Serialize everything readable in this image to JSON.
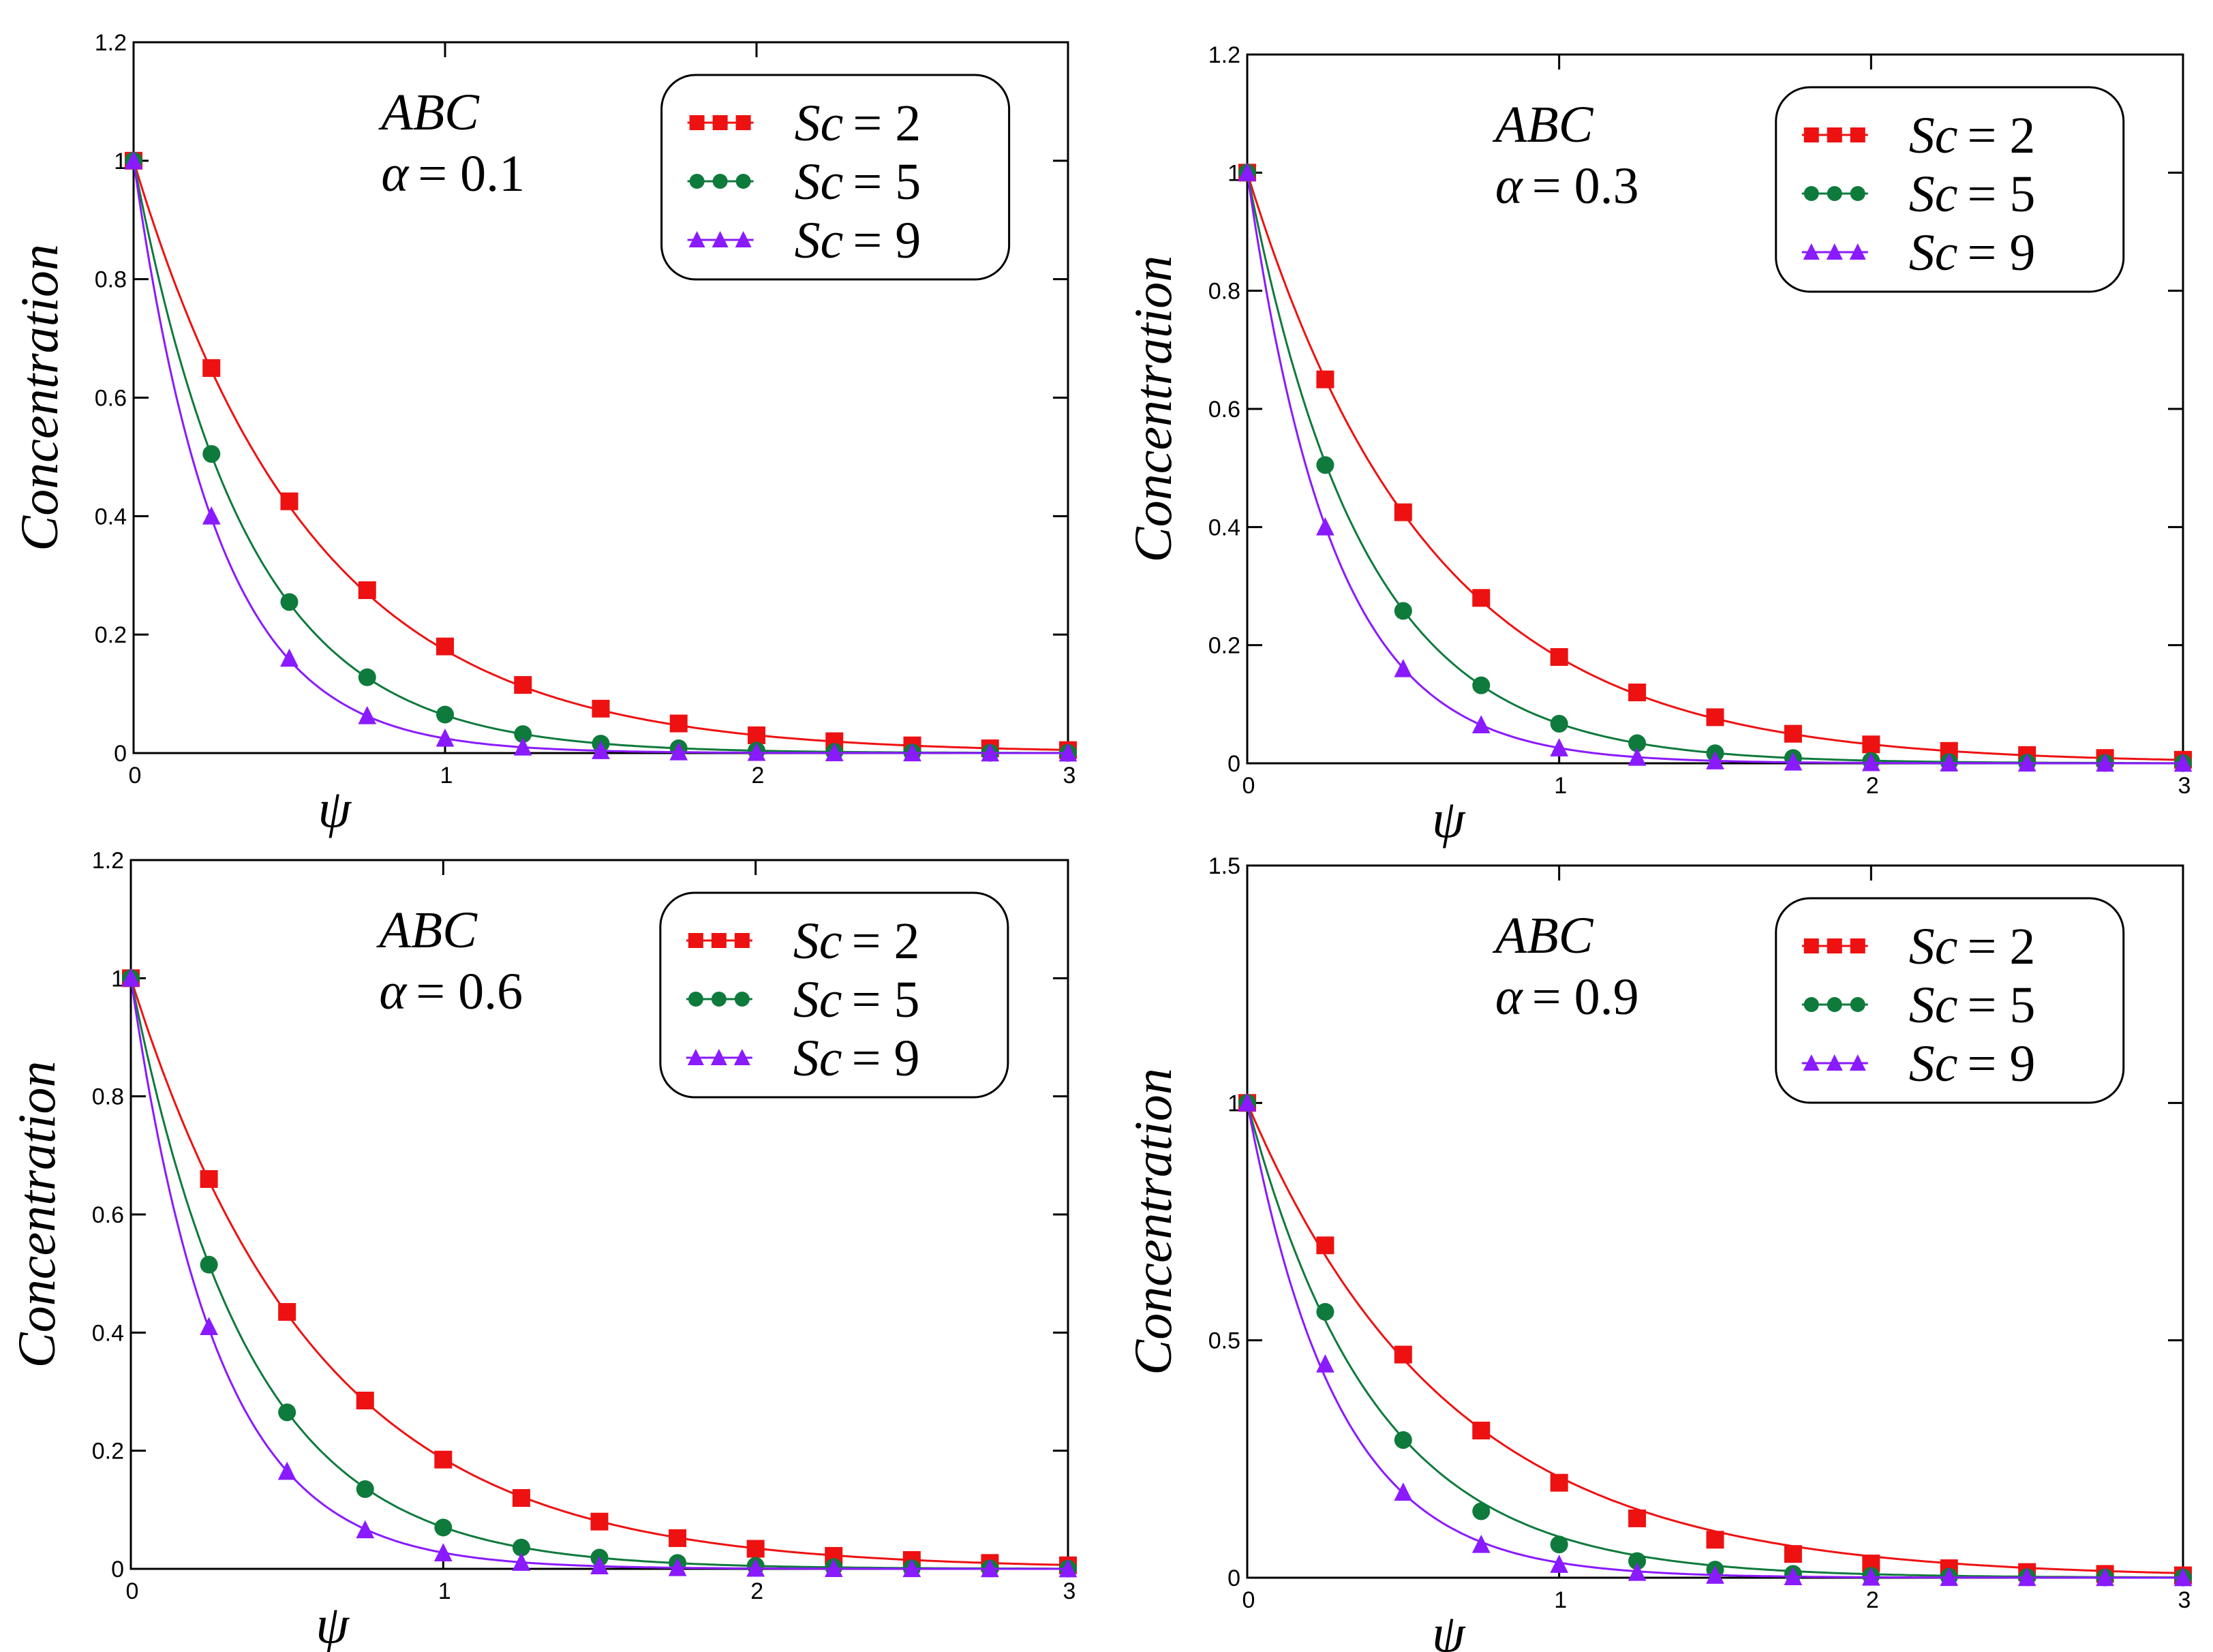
{
  "figure": {
    "description_panels": 4
  },
  "colors": {
    "sc2": "#ee1111",
    "sc5": "#0e7a3c",
    "sc9": "#8a1aff",
    "axis": "#000000"
  },
  "chart_data": [
    {
      "type": "line",
      "panel": "top-left",
      "annotation_line1": "ABC",
      "annotation_alpha_symbol": "α",
      "annotation_alpha_value": "= 0.1",
      "xlabel": "ψ",
      "ylabel": "Concentration",
      "xlim": [
        0,
        3
      ],
      "ylim": [
        0,
        1.2
      ],
      "xticks": [
        "0",
        "1",
        "2",
        "3"
      ],
      "yticks": [
        "0",
        "0.2",
        "0.4",
        "0.6",
        "0.8",
        "1",
        "1.2"
      ],
      "ytick_values": [
        0,
        0.2,
        0.4,
        0.6,
        0.8,
        1,
        1.2
      ],
      "legend_position": "top-right",
      "series": [
        {
          "name": "Sc = 2",
          "legend_sym": "Sc",
          "legend_val": "= 2",
          "marker": "square",
          "color_key": "sc2",
          "k": 1.75,
          "x": [
            0,
            0.25,
            0.5,
            0.75,
            1.0,
            1.25,
            1.5,
            1.75,
            2.0,
            2.25,
            2.5,
            2.75,
            3.0
          ],
          "values": [
            1.0,
            0.65,
            0.425,
            0.275,
            0.18,
            0.115,
            0.075,
            0.05,
            0.03,
            0.02,
            0.013,
            0.008,
            0.005
          ]
        },
        {
          "name": "Sc = 5",
          "legend_sym": "Sc",
          "legend_val": "= 5",
          "marker": "circle",
          "color_key": "sc5",
          "k": 2.75,
          "x": [
            0,
            0.25,
            0.5,
            0.75,
            1.0,
            1.25,
            1.5,
            1.75,
            2.0,
            2.25,
            2.5,
            2.75,
            3.0
          ],
          "values": [
            1.0,
            0.505,
            0.255,
            0.128,
            0.065,
            0.032,
            0.016,
            0.008,
            0.004,
            0.002,
            0.001,
            0.0005,
            0.0003
          ]
        },
        {
          "name": "Sc = 9",
          "legend_sym": "Sc",
          "legend_val": "= 9",
          "marker": "triangle",
          "color_key": "sc9",
          "k": 3.7,
          "x": [
            0,
            0.25,
            0.5,
            0.75,
            1.0,
            1.25,
            1.5,
            1.75,
            2.0,
            2.25,
            2.5,
            2.75,
            3.0
          ],
          "values": [
            1.0,
            0.4,
            0.16,
            0.063,
            0.025,
            0.01,
            0.004,
            0.002,
            0.001,
            0.0004,
            0.0002,
            0.0001,
            0.0
          ]
        }
      ]
    },
    {
      "type": "line",
      "panel": "top-right",
      "annotation_line1": "ABC",
      "annotation_alpha_symbol": "α",
      "annotation_alpha_value": "= 0.3",
      "xlabel": "ψ",
      "ylabel": "Concentration",
      "xlim": [
        0,
        3
      ],
      "ylim": [
        0,
        1.2
      ],
      "xticks": [
        "0",
        "1",
        "2",
        "3"
      ],
      "yticks": [
        "0",
        "0.2",
        "0.4",
        "0.6",
        "0.8",
        "1",
        "1.2"
      ],
      "ytick_values": [
        0,
        0.2,
        0.4,
        0.6,
        0.8,
        1,
        1.2
      ],
      "legend_position": "top-right",
      "series": [
        {
          "name": "Sc = 2",
          "legend_sym": "Sc",
          "legend_val": "= 2",
          "marker": "square",
          "color_key": "sc2",
          "k": 1.72,
          "x": [
            0,
            0.25,
            0.5,
            0.75,
            1.0,
            1.25,
            1.5,
            1.75,
            2.0,
            2.25,
            2.5,
            2.75,
            3.0
          ],
          "values": [
            1.0,
            0.65,
            0.425,
            0.28,
            0.18,
            0.12,
            0.078,
            0.05,
            0.032,
            0.021,
            0.014,
            0.009,
            0.006
          ]
        },
        {
          "name": "Sc = 5",
          "legend_sym": "Sc",
          "legend_val": "= 5",
          "marker": "circle",
          "color_key": "sc5",
          "k": 2.7,
          "x": [
            0,
            0.25,
            0.5,
            0.75,
            1.0,
            1.25,
            1.5,
            1.75,
            2.0,
            2.25,
            2.5,
            2.75,
            3.0
          ],
          "values": [
            1.0,
            0.505,
            0.258,
            0.132,
            0.067,
            0.034,
            0.017,
            0.009,
            0.004,
            0.002,
            0.001,
            0.0006,
            0.0003
          ]
        },
        {
          "name": "Sc = 9",
          "legend_sym": "Sc",
          "legend_val": "= 9",
          "marker": "triangle",
          "color_key": "sc9",
          "k": 3.65,
          "x": [
            0,
            0.25,
            0.5,
            0.75,
            1.0,
            1.25,
            1.5,
            1.75,
            2.0,
            2.25,
            2.5,
            2.75,
            3.0
          ],
          "values": [
            1.0,
            0.4,
            0.16,
            0.065,
            0.026,
            0.01,
            0.004,
            0.002,
            0.001,
            0.0004,
            0.0002,
            0.0001,
            0.0
          ]
        }
      ]
    },
    {
      "type": "line",
      "panel": "bottom-left",
      "annotation_line1": "ABC",
      "annotation_alpha_symbol": "α",
      "annotation_alpha_value": "= 0.6",
      "xlabel": "ψ",
      "ylabel": "Concentration",
      "xlim": [
        0,
        3
      ],
      "ylim": [
        0,
        1.2
      ],
      "xticks": [
        "0",
        "1",
        "2",
        "3"
      ],
      "yticks": [
        "0",
        "0.2",
        "0.4",
        "0.6",
        "0.8",
        "1",
        "1.2"
      ],
      "ytick_values": [
        0,
        0.2,
        0.4,
        0.6,
        0.8,
        1,
        1.2
      ],
      "legend_position": "top-right",
      "series": [
        {
          "name": "Sc = 2",
          "legend_sym": "Sc",
          "legend_val": "= 2",
          "marker": "square",
          "color_key": "sc2",
          "k": 1.68,
          "x": [
            0,
            0.25,
            0.5,
            0.75,
            1.0,
            1.25,
            1.5,
            1.75,
            2.0,
            2.25,
            2.5,
            2.75,
            3.0
          ],
          "values": [
            1.0,
            0.66,
            0.435,
            0.285,
            0.185,
            0.12,
            0.08,
            0.052,
            0.034,
            0.022,
            0.015,
            0.01,
            0.006
          ]
        },
        {
          "name": "Sc = 5",
          "legend_sym": "Sc",
          "legend_val": "= 5",
          "marker": "circle",
          "color_key": "sc5",
          "k": 2.65,
          "x": [
            0,
            0.25,
            0.5,
            0.75,
            1.0,
            1.25,
            1.5,
            1.75,
            2.0,
            2.25,
            2.5,
            2.75,
            3.0
          ],
          "values": [
            1.0,
            0.515,
            0.265,
            0.135,
            0.07,
            0.036,
            0.019,
            0.01,
            0.005,
            0.003,
            0.001,
            0.0007,
            0.0004
          ]
        },
        {
          "name": "Sc = 9",
          "legend_sym": "Sc",
          "legend_val": "= 9",
          "marker": "triangle",
          "color_key": "sc9",
          "k": 3.6,
          "x": [
            0,
            0.25,
            0.5,
            0.75,
            1.0,
            1.25,
            1.5,
            1.75,
            2.0,
            2.25,
            2.5,
            2.75,
            3.0
          ],
          "values": [
            1.0,
            0.41,
            0.165,
            0.066,
            0.027,
            0.011,
            0.005,
            0.002,
            0.001,
            0.0004,
            0.0002,
            0.0001,
            0.0
          ]
        }
      ]
    },
    {
      "type": "line",
      "panel": "bottom-right",
      "annotation_line1": "ABC",
      "annotation_alpha_symbol": "α",
      "annotation_alpha_value": "= 0.9",
      "xlabel": "ψ",
      "ylabel": "Concentration",
      "xlim": [
        0,
        3
      ],
      "ylim": [
        0,
        1.5
      ],
      "xticks": [
        "0",
        "1",
        "2",
        "3"
      ],
      "yticks": [
        "0",
        "0.5",
        "1",
        "1.5"
      ],
      "ytick_values": [
        0,
        0.5,
        1,
        1.5
      ],
      "legend_position": "top-right",
      "series": [
        {
          "name": "Sc = 2",
          "legend_sym": "Sc",
          "legend_val": "= 2",
          "marker": "square",
          "color_key": "sc2",
          "k": 1.55,
          "x": [
            0,
            0.25,
            0.5,
            0.75,
            1.0,
            1.25,
            1.5,
            1.75,
            2.0,
            2.25,
            2.5,
            2.75,
            3.0
          ],
          "values": [
            1.0,
            0.7,
            0.47,
            0.31,
            0.2,
            0.125,
            0.08,
            0.05,
            0.03,
            0.02,
            0.012,
            0.008,
            0.005
          ]
        },
        {
          "name": "Sc = 5",
          "legend_sym": "Sc",
          "legend_val": "= 5",
          "marker": "circle",
          "color_key": "sc5",
          "k": 2.45,
          "x": [
            0,
            0.25,
            0.5,
            0.75,
            1.0,
            1.25,
            1.5,
            1.75,
            2.0,
            2.25,
            2.5,
            2.75,
            3.0
          ],
          "values": [
            1.0,
            0.56,
            0.29,
            0.14,
            0.07,
            0.035,
            0.017,
            0.008,
            0.004,
            0.002,
            0.001,
            0.0005,
            0.0003
          ]
        },
        {
          "name": "Sc = 9",
          "legend_sym": "Sc",
          "legend_val": "= 9",
          "marker": "triangle",
          "color_key": "sc9",
          "k": 3.45,
          "x": [
            0,
            0.25,
            0.5,
            0.75,
            1.0,
            1.25,
            1.5,
            1.75,
            2.0,
            2.25,
            2.5,
            2.75,
            3.0
          ],
          "values": [
            1.0,
            0.45,
            0.18,
            0.07,
            0.028,
            0.011,
            0.005,
            0.002,
            0.001,
            0.0004,
            0.0002,
            0.0001,
            0.0
          ]
        }
      ]
    }
  ]
}
